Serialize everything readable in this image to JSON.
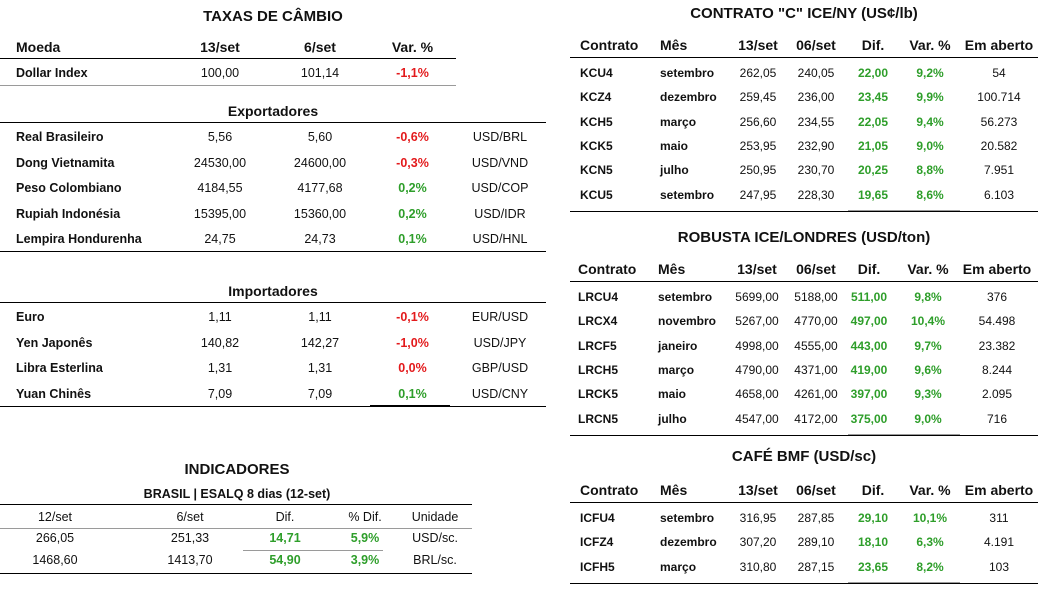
{
  "taxas": {
    "title": "TAXAS DE CÂMBIO",
    "headers": {
      "moeda": "Moeda",
      "d1": "13/set",
      "d2": "6/set",
      "var": "Var. %"
    },
    "dollar_index": {
      "name": "Dollar Index",
      "v1": "100,00",
      "v2": "101,14",
      "var": "-1,1%",
      "var_color": "red"
    },
    "exportadores_title": "Exportadores",
    "exportadores": [
      {
        "name": "Real Brasileiro",
        "v1": "5,56",
        "v2": "5,60",
        "var": "-0,6%",
        "var_color": "red",
        "pair": "USD/BRL"
      },
      {
        "name": "Dong Vietnamita",
        "v1": "24530,00",
        "v2": "24600,00",
        "var": "-0,3%",
        "var_color": "red",
        "pair": "USD/VND"
      },
      {
        "name": "Peso Colombiano",
        "v1": "4184,55",
        "v2": "4177,68",
        "var": "0,2%",
        "var_color": "green",
        "pair": "USD/COP"
      },
      {
        "name": "Rupiah Indonésia",
        "v1": "15395,00",
        "v2": "15360,00",
        "var": "0,2%",
        "var_color": "green",
        "pair": "USD/IDR"
      },
      {
        "name": "Lempira Hondurenha",
        "v1": "24,75",
        "v2": "24,73",
        "var": "0,1%",
        "var_color": "green",
        "pair": "USD/HNL"
      }
    ],
    "importadores_title": "Importadores",
    "importadores": [
      {
        "name": "Euro",
        "v1": "1,11",
        "v2": "1,11",
        "var": "-0,1%",
        "var_color": "red",
        "pair": "EUR/USD"
      },
      {
        "name": "Yen Japonês",
        "v1": "140,82",
        "v2": "142,27",
        "var": "-1,0%",
        "var_color": "red",
        "pair": "USD/JPY"
      },
      {
        "name": "Libra Esterlina",
        "v1": "1,31",
        "v2": "1,31",
        "var": "0,0%",
        "var_color": "red",
        "pair": "GBP/USD"
      },
      {
        "name": "Yuan Chinês",
        "v1": "7,09",
        "v2": "7,09",
        "var": "0,1%",
        "var_color": "green",
        "pair": "USD/CNY"
      }
    ]
  },
  "indicadores": {
    "title": "INDICADORES",
    "subtitle": "BRASIL | ESALQ 8 dias (12-set)",
    "headers": [
      "12/set",
      "6/set",
      "Dif.",
      "% Dif.",
      "Unidade"
    ],
    "rows": [
      [
        "266,05",
        "251,33",
        "14,71",
        "5,9%",
        "USD/sc."
      ],
      [
        "1468,60",
        "1413,70",
        "54,90",
        "3,9%",
        "BRL/sc."
      ]
    ]
  },
  "colors": {
    "red": "#e31a1c",
    "green": "#2e9e2a"
  },
  "contrato_c": {
    "title": "CONTRATO \"C\" ICE/NY (US¢/lb)",
    "headers": [
      "Contrato",
      "Mês",
      "13/set",
      "06/set",
      "Dif.",
      "Var. %",
      "Em aberto"
    ],
    "rows": [
      [
        "KCU4",
        "setembro",
        "262,05",
        "240,05",
        "22,00",
        "9,2%",
        "54"
      ],
      [
        "KCZ4",
        "dezembro",
        "259,45",
        "236,00",
        "23,45",
        "9,9%",
        "100.714"
      ],
      [
        "KCH5",
        "março",
        "256,60",
        "234,55",
        "22,05",
        "9,4%",
        "56.273"
      ],
      [
        "KCK5",
        "maio",
        "253,95",
        "232,90",
        "21,05",
        "9,0%",
        "20.582"
      ],
      [
        "KCN5",
        "julho",
        "250,95",
        "230,70",
        "20,25",
        "8,8%",
        "7.951"
      ],
      [
        "KCU5",
        "setembro",
        "247,95",
        "228,30",
        "19,65",
        "8,6%",
        "6.103"
      ]
    ]
  },
  "robusta": {
    "title": "ROBUSTA ICE/LONDRES (USD/ton)",
    "headers": [
      "Contrato",
      "Mês",
      "13/set",
      "06/set",
      "Dif.",
      "Var. %",
      "Em aberto"
    ],
    "rows": [
      [
        "LRCU4",
        "setembro",
        "5699,00",
        "5188,00",
        "511,00",
        "9,8%",
        "376"
      ],
      [
        "LRCX4",
        "novembro",
        "5267,00",
        "4770,00",
        "497,00",
        "10,4%",
        "54.498"
      ],
      [
        "LRCF5",
        "janeiro",
        "4998,00",
        "4555,00",
        "443,00",
        "9,7%",
        "23.382"
      ],
      [
        "LRCH5",
        "março",
        "4790,00",
        "4371,00",
        "419,00",
        "9,6%",
        "8.244"
      ],
      [
        "LRCK5",
        "maio",
        "4658,00",
        "4261,00",
        "397,00",
        "9,3%",
        "2.095"
      ],
      [
        "LRCN5",
        "julho",
        "4547,00",
        "4172,00",
        "375,00",
        "9,0%",
        "716"
      ]
    ]
  },
  "bmf": {
    "title": "CAFÉ BMF (USD/sc)",
    "headers": [
      "Contrato",
      "Mês",
      "13/set",
      "06/set",
      "Dif.",
      "Var. %",
      "Em aberto"
    ],
    "rows": [
      [
        "ICFU4",
        "setembro",
        "316,95",
        "287,85",
        "29,10",
        "10,1%",
        "311"
      ],
      [
        "ICFZ4",
        "dezembro",
        "307,20",
        "289,10",
        "18,10",
        "6,3%",
        "4.191"
      ],
      [
        "ICFH5",
        "março",
        "310,80",
        "287,15",
        "23,65",
        "8,2%",
        "103"
      ]
    ]
  }
}
